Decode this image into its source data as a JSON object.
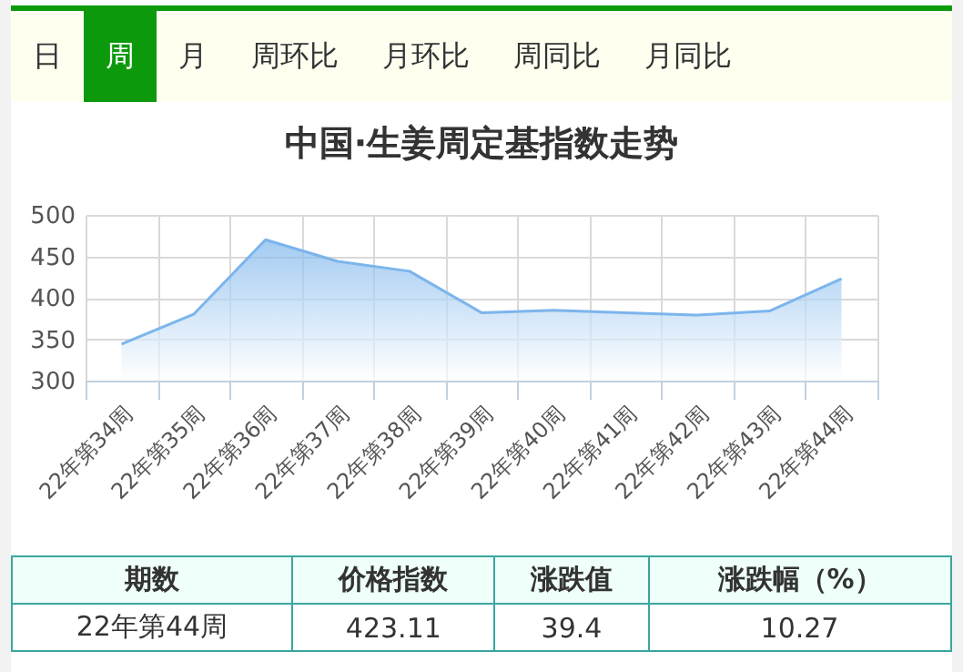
{
  "chart_data": {
    "type": "area",
    "title": "中国·生姜周定基指数走势",
    "categories": [
      "22年第34周",
      "22年第35周",
      "22年第36周",
      "22年第37周",
      "22年第38周",
      "22年第39周",
      "22年第40周",
      "22年第41周",
      "22年第42周",
      "22年第43周",
      "22年第44周"
    ],
    "series": [
      {
        "color": "#7cb5ec",
        "values": [
          344,
          380,
          470,
          444,
          432,
          382,
          385,
          382,
          379,
          384,
          423
        ]
      }
    ],
    "ylim": [
      300,
      500
    ],
    "yticks": [
      300,
      350,
      400,
      450,
      500
    ],
    "grid": true,
    "annotations": [
      "日",
      "周",
      "月",
      "周环比",
      "月环比",
      "周同比",
      "月同比",
      "期数",
      "价格指数",
      "涨跌值",
      "涨跌幅（%）",
      "22年第44周",
      "423.11",
      "39.4",
      "10.27"
    ]
  }
}
